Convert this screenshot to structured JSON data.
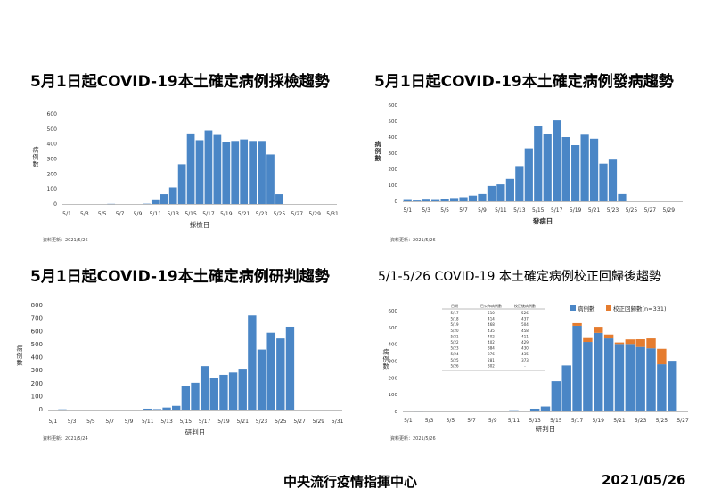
{
  "charts": [
    {
      "title": "5月1日起COVID-19本土確定病例採檢趨勢",
      "note": "資料更新：2021/5/26",
      "chart_data": {
        "type": "bar",
        "ylabel": "病例數",
        "xlabel": "採檢日",
        "ylim": [
          0,
          600
        ],
        "yticks": [
          0,
          100,
          200,
          300,
          400,
          500,
          600
        ],
        "categories": [
          "5/1",
          "5/2",
          "5/3",
          "5/4",
          "5/5",
          "5/6",
          "5/7",
          "5/8",
          "5/9",
          "5/10",
          "5/11",
          "5/12",
          "5/13",
          "5/14",
          "5/15",
          "5/16",
          "5/17",
          "5/18",
          "5/19",
          "5/20",
          "5/21",
          "5/22",
          "5/23",
          "5/24",
          "5/25",
          "5/26",
          "5/27",
          "5/28",
          "5/29",
          "5/30",
          "5/31"
        ],
        "tick_labels": [
          "5/1",
          "5/3",
          "5/5",
          "5/7",
          "5/9",
          "5/11",
          "5/13",
          "5/15",
          "5/17",
          "5/19",
          "5/21",
          "5/23",
          "5/25",
          "5/27",
          "5/29",
          "5/31"
        ],
        "series": [
          {
            "values": [
              0,
              0,
              0,
              0,
              0,
              1,
              0,
              0,
              0,
              2,
              25,
              65,
              110,
              265,
              470,
              425,
              490,
              460,
              410,
              420,
              430,
              420,
              420,
              330,
              65,
              0,
              0,
              0,
              0,
              0,
              0
            ],
            "color": "#4a86c6"
          }
        ]
      }
    },
    {
      "title": "5月1日起COVID-19本土確定病例發病趨勢",
      "note": "資料更新：2021/5/26",
      "chart_data": {
        "type": "bar",
        "ylabel": "病例數",
        "xlabel": "發病日",
        "ylim": [
          0,
          600
        ],
        "yticks": [
          0,
          100,
          200,
          300,
          400,
          500,
          600
        ],
        "categories": [
          "5/1",
          "5/2",
          "5/3",
          "5/4",
          "5/5",
          "5/6",
          "5/7",
          "5/8",
          "5/9",
          "5/10",
          "5/11",
          "5/12",
          "5/13",
          "5/14",
          "5/15",
          "5/16",
          "5/17",
          "5/18",
          "5/19",
          "5/20",
          "5/21",
          "5/22",
          "5/23",
          "5/24",
          "5/25",
          "5/26",
          "5/27",
          "5/28",
          "5/29",
          "5/30"
        ],
        "tick_labels": [
          "5/1",
          "5/3",
          "5/5",
          "5/7",
          "5/9",
          "5/11",
          "5/13",
          "5/15",
          "5/17",
          "5/19",
          "5/21",
          "5/23",
          "5/25",
          "5/27",
          "5/29"
        ],
        "series": [
          {
            "values": [
              8,
              5,
              10,
              8,
              12,
              20,
              25,
              35,
              45,
              95,
              105,
              140,
              220,
              330,
              470,
              420,
              505,
              400,
              350,
              415,
              390,
              235,
              260,
              45,
              0,
              0,
              0,
              0,
              0,
              0
            ],
            "color": "#4a86c6"
          }
        ]
      }
    },
    {
      "title": "5月1日起COVID-19本土確定病例研判趨勢",
      "note": "資料更新：2021/5/24",
      "chart_data": {
        "type": "bar",
        "ylabel": "病例數",
        "xlabel": "研判日",
        "ylim": [
          0,
          800
        ],
        "yticks": [
          0,
          100,
          200,
          300,
          400,
          500,
          600,
          700,
          800
        ],
        "categories": [
          "5/1",
          "5/2",
          "5/3",
          "5/4",
          "5/5",
          "5/6",
          "5/7",
          "5/8",
          "5/9",
          "5/10",
          "5/11",
          "5/12",
          "5/13",
          "5/14",
          "5/15",
          "5/16",
          "5/17",
          "5/18",
          "5/19",
          "5/20",
          "5/21",
          "5/22",
          "5/23",
          "5/24",
          "5/25",
          "5/26",
          "5/27",
          "5/28",
          "5/29",
          "5/30",
          "5/31"
        ],
        "tick_labels": [
          "5/1",
          "5/3",
          "5/5",
          "5/7",
          "5/9",
          "5/11",
          "5/13",
          "5/15",
          "5/17",
          "5/19",
          "5/21",
          "5/23",
          "5/25",
          "5/27",
          "5/29",
          "5/31"
        ],
        "series": [
          {
            "values": [
              0,
              2,
              0,
              0,
              0,
              0,
              0,
              0,
              0,
              0,
              7,
              4,
              16,
              29,
              180,
              206,
              334,
              240,
              267,
              285,
              314,
              723,
              461,
              590,
              546,
              636,
              0,
              0,
              0,
              0,
              0
            ],
            "color": "#4a86c6"
          }
        ]
      }
    },
    {
      "title": "5/1-5/26 COVID-19 本土確定病例校正回歸後趨勢",
      "note": "資料更新：2021/5/26",
      "chart_data": {
        "type": "bar",
        "stacked": true,
        "ylabel": "病例數",
        "xlabel": "研判日",
        "ylim": [
          0,
          600
        ],
        "yticks": [
          0,
          100,
          200,
          300,
          400,
          500,
          600
        ],
        "legend_position": "top-right",
        "categories": [
          "5/1",
          "5/2",
          "5/3",
          "5/4",
          "5/5",
          "5/6",
          "5/7",
          "5/8",
          "5/9",
          "5/10",
          "5/11",
          "5/12",
          "5/13",
          "5/14",
          "5/15",
          "5/16",
          "5/17",
          "5/18",
          "5/19",
          "5/20",
          "5/21",
          "5/22",
          "5/23",
          "5/24",
          "5/25",
          "5/26",
          "5/27"
        ],
        "tick_labels": [
          "5/1",
          "5/3",
          "5/5",
          "5/7",
          "5/9",
          "5/11",
          "5/13",
          "5/15",
          "5/17",
          "5/19",
          "5/21",
          "5/23",
          "5/25",
          "5/27"
        ],
        "series": [
          {
            "name": "病例數",
            "values": [
              0,
              2,
              0,
              0,
              0,
              0,
              0,
              0,
              0,
              0,
              7,
              4,
              16,
              29,
              180,
              274,
              510,
              414,
              468,
              435,
              402,
              402,
              384,
              376,
              281,
              302,
              0
            ],
            "color": "#4a86c6"
          },
          {
            "name": "校正回歸數(n=331)",
            "values": [
              0,
              0,
              0,
              0,
              0,
              0,
              0,
              0,
              0,
              0,
              0,
              0,
              0,
              0,
              0,
              0,
              16,
              23,
              36,
              23,
              9,
              27,
              46,
              59,
              92,
              0,
              0
            ],
            "color": "#e57c2f"
          }
        ],
        "table": {
          "columns": [
            "日期",
            "已公布病例數",
            "校正後病例數"
          ],
          "rows": [
            [
              "5/17",
              "510",
              "526"
            ],
            [
              "5/18",
              "414",
              "437"
            ],
            [
              "5/19",
              "468",
              "504"
            ],
            [
              "5/20",
              "435",
              "458"
            ],
            [
              "5/21",
              "402",
              "411"
            ],
            [
              "5/22",
              "402",
              "429"
            ],
            [
              "5/23",
              "384",
              "430"
            ],
            [
              "5/24",
              "376",
              "435"
            ],
            [
              "5/25",
              "281",
              "373"
            ],
            [
              "5/26",
              "302",
              "-"
            ]
          ]
        }
      }
    }
  ],
  "footer": {
    "organization": "中央流行疫情指揮中心",
    "date": "2021/05/26"
  }
}
